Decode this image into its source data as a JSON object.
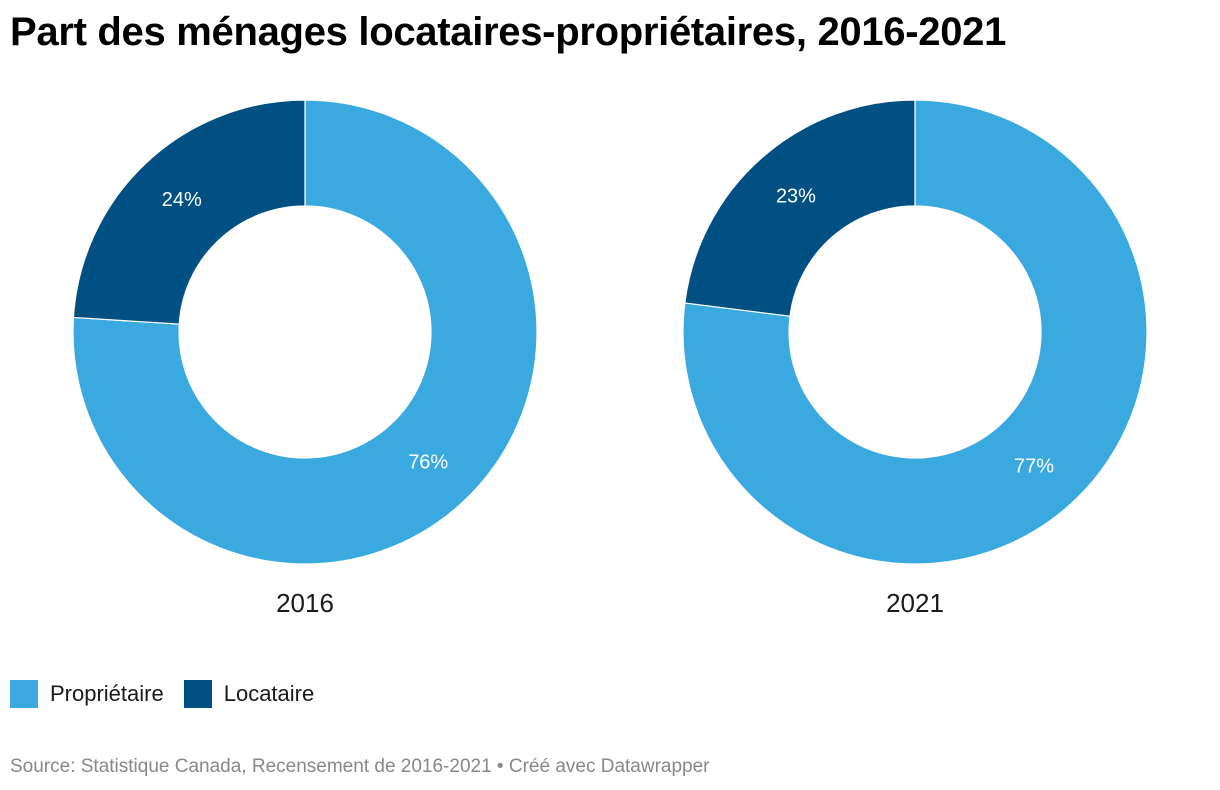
{
  "title": "Part des ménages locataires-propriétaires, 2016-2021",
  "legend": {
    "items": [
      {
        "label": "Propriétaire",
        "color": "#3aa9e0"
      },
      {
        "label": "Locataire",
        "color": "#005083"
      }
    ]
  },
  "footer": {
    "source": "Source: Statistique Canada, Recensement de 2016-2021 • Créé avec Datawrapper"
  },
  "chart_data": [
    {
      "type": "pie",
      "variant": "donut",
      "label": "2016",
      "slices": [
        {
          "name": "Propriétaire",
          "value": 76,
          "label": "76%",
          "color": "#3aa9e0"
        },
        {
          "name": "Locataire",
          "value": 24,
          "label": "24%",
          "color": "#005083"
        }
      ]
    },
    {
      "type": "pie",
      "variant": "donut",
      "label": "2021",
      "slices": [
        {
          "name": "Propriétaire",
          "value": 77,
          "label": "77%",
          "color": "#3aa9e0"
        },
        {
          "name": "Locataire",
          "value": 23,
          "label": "23%",
          "color": "#005083"
        }
      ]
    }
  ]
}
